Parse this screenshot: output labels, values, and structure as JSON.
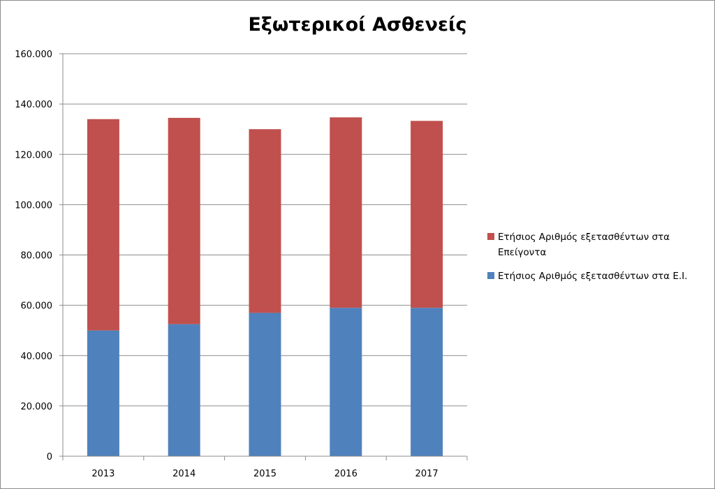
{
  "chart_data": {
    "type": "bar",
    "stacked": true,
    "title": "Εξωτερικοί Ασθενείς",
    "xlabel": "",
    "ylabel": "",
    "categories": [
      "2013",
      "2014",
      "2015",
      "2016",
      "2017"
    ],
    "series": [
      {
        "name": "Ετήσιος Αριθμός εξετασθέντων στα Ε.Ι.",
        "color": "#4F81BD",
        "values": [
          50000,
          52500,
          57000,
          59000,
          59000
        ]
      },
      {
        "name": "Ετήσιος Αριθμός εξετασθέντων στα Επείγοντα",
        "color": "#C0504D",
        "values": [
          84000,
          82000,
          73000,
          75700,
          74300
        ]
      }
    ],
    "ylim": [
      0,
      160000
    ],
    "yticks": [
      0,
      20000,
      40000,
      60000,
      80000,
      100000,
      120000,
      140000,
      160000
    ],
    "ytick_labels": [
      "0",
      "20.000",
      "40.000",
      "60.000",
      "80.000",
      "100.000",
      "120.000",
      "140.000",
      "160.000"
    ],
    "grid": true,
    "legend_position": "right",
    "legend_lines": [
      [
        "Ετήσιος Αριθμός εξετασθέντων στα",
        "Επείγοντα"
      ],
      [
        "Ετήσιος Αριθμός εξετασθέντων στα Ε.Ι."
      ]
    ],
    "legend_order": [
      1,
      0
    ]
  }
}
